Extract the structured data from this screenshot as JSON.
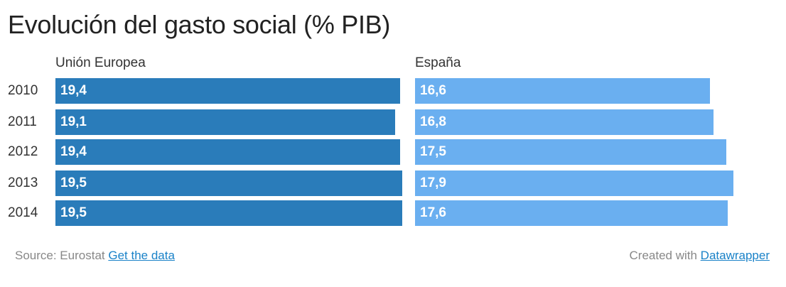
{
  "chart_data": {
    "type": "bar",
    "title": "Evolución del gasto social (% PIB)",
    "categories": [
      "2010",
      "2011",
      "2012",
      "2013",
      "2014"
    ],
    "series": [
      {
        "name": "Unión Europea",
        "values": [
          19.4,
          19.1,
          19.4,
          19.5,
          19.5
        ],
        "labels": [
          "19,4",
          "19,1",
          "19,4",
          "19,5",
          "19,5"
        ],
        "color": "#2a7cba"
      },
      {
        "name": "España",
        "values": [
          16.6,
          16.8,
          17.5,
          17.9,
          17.6
        ],
        "labels": [
          "16,6",
          "16,8",
          "17,5",
          "17,9",
          "17,6"
        ],
        "color": "#6aaff0"
      }
    ],
    "xlim": [
      0,
      19.5
    ],
    "grid": false
  },
  "footer": {
    "source_label": "Source: Eurostat",
    "data_link": "Get the data",
    "created_label": "Created with",
    "datawrapper_link": "Datawrapper"
  }
}
